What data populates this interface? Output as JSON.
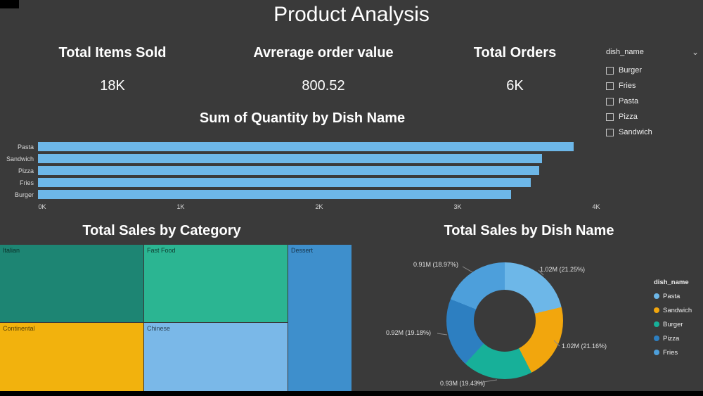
{
  "page": {
    "title": "Product Analysis",
    "background": "#3a3a3a"
  },
  "icons": {
    "chevron_down": "⌄"
  },
  "kpis": [
    {
      "label": "Total Items Sold",
      "value": "18K"
    },
    {
      "label": "Avrerage order value",
      "value": "800.52"
    },
    {
      "label": "Total Orders",
      "value": "6K"
    }
  ],
  "slicer": {
    "title": "dish_name",
    "options": [
      {
        "label": "Burger",
        "checked": false
      },
      {
        "label": "Fries",
        "checked": false
      },
      {
        "label": "Pasta",
        "checked": false
      },
      {
        "label": "Pizza",
        "checked": false
      },
      {
        "label": "Sandwich",
        "checked": false
      }
    ]
  },
  "chart_data": [
    {
      "type": "bar",
      "orientation": "horizontal",
      "title": "Sum of Quantity by Dish Name",
      "categories": [
        "Pasta",
        "Sandwich",
        "Pizza",
        "Fries",
        "Burger"
      ],
      "values": [
        3840,
        3610,
        3590,
        3530,
        3390
      ],
      "xlim": [
        0,
        4000
      ],
      "x_ticks": [
        "0K",
        "1K",
        "2K",
        "3K",
        "4K"
      ],
      "bar_color": "#6db7e8",
      "grid": false,
      "legend": "none"
    },
    {
      "type": "treemap",
      "title": "Total Sales by Category",
      "tiles": [
        {
          "label": "Italian",
          "color": "#1d8573"
        },
        {
          "label": "Fast Food",
          "color": "#2bb592"
        },
        {
          "label": "Dessert",
          "color": "#3e8fcc"
        },
        {
          "label": "Continental",
          "color": "#f2b20d"
        },
        {
          "label": "Chinese",
          "color": "#7ab8e8"
        }
      ]
    },
    {
      "type": "pie",
      "subtype": "donut",
      "title": "Total Sales by Dish Name",
      "legend_title": "dish_name",
      "legend_position": "right",
      "series": [
        {
          "name": "Pasta",
          "value_label": "1.02M",
          "pct": 21.25,
          "color": "#6db7e8",
          "callout": "1.02M (21.25%)"
        },
        {
          "name": "Sandwich",
          "value_label": "1.02M",
          "pct": 21.16,
          "color": "#f2a60d",
          "callout": "1.02M (21.16%)"
        },
        {
          "name": "Burger",
          "value_label": "0.93M",
          "pct": 19.43,
          "color": "#17b099",
          "callout": "0.93M (19.43%)"
        },
        {
          "name": "Pizza",
          "value_label": "0.92M",
          "pct": 19.18,
          "color": "#2d7fc1",
          "callout": "0.92M (19.18%)"
        },
        {
          "name": "Fries",
          "value_label": "0.91M",
          "pct": 18.97,
          "color": "#4d9fdb",
          "callout": "0.91M (18.97%)"
        }
      ]
    }
  ]
}
